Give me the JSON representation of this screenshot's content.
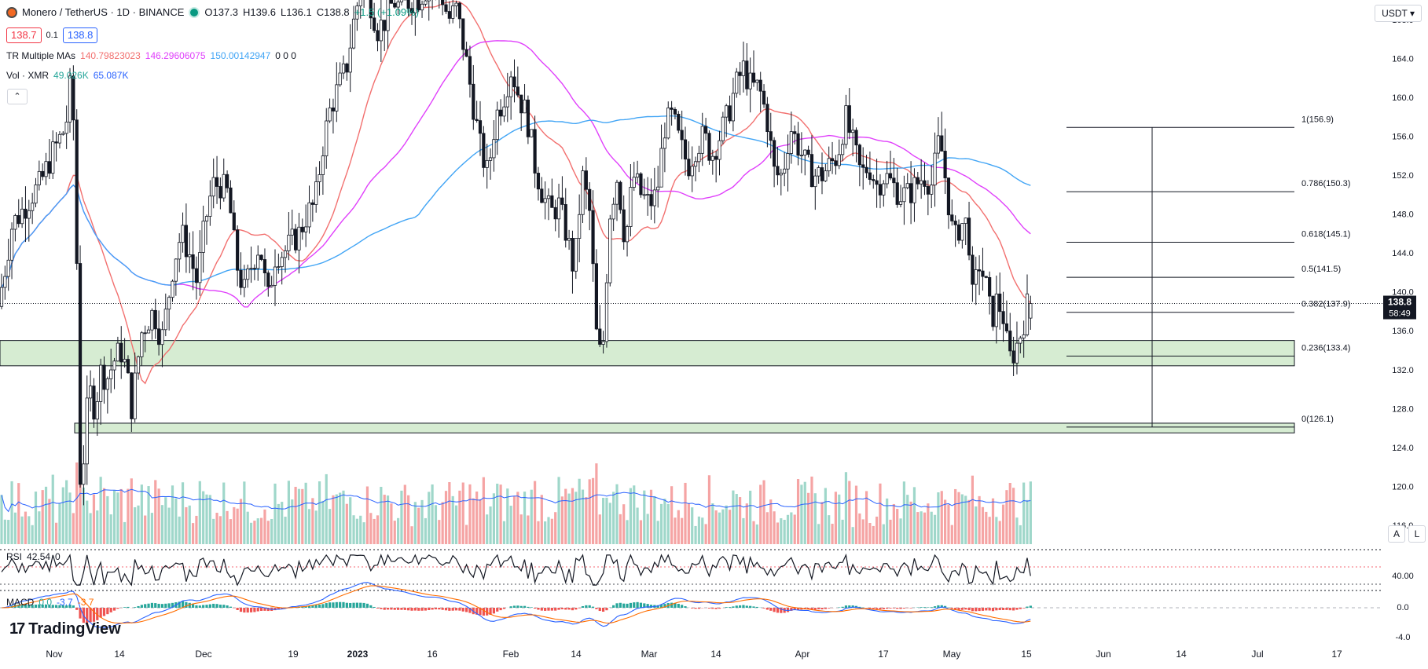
{
  "header": {
    "symbol": "Monero / TetherUS · 1D · BINANCE",
    "open": "O137.3",
    "high": "H139.6",
    "low": "L136.1",
    "close": "C138.8",
    "change": "+1.5 (+1.09%)",
    "bid": "138.7",
    "spread": "0.1",
    "ask": "138.8",
    "collapse_glyph": "⌃"
  },
  "indicators": {
    "ma_label": "TR Multiple MAs",
    "ma_values": [
      "140.79823023",
      "146.29606075",
      "150.00142947"
    ],
    "ma_zeros": "0  0  0",
    "vol_label": "Vol · XMR",
    "vol_values": [
      "49.026K",
      "65.087K"
    ],
    "rsi_label": "RSI",
    "rsi_value": "42.54",
    "rsi_extra": "0",
    "macd_label": "MACD",
    "macd_values": [
      "0.0",
      "-3.7",
      "-3.7"
    ]
  },
  "currency": "USDT",
  "scale_buttons": [
    "A",
    "L"
  ],
  "branding": "TradingView",
  "colors": {
    "up": "#26a69a",
    "down": "#ef5350",
    "ma1": "#f2706f",
    "ma2": "#e040fb",
    "ma3": "#42a5f5",
    "zone_fill": "#d6ecd2",
    "volume_ma": "#2962ff"
  },
  "chart_data": {
    "type": "candlestick",
    "price_axis": {
      "ticks": [
        "168.0",
        "164.0",
        "160.0",
        "156.0",
        "152.0",
        "148.0",
        "144.0",
        "140.0",
        "136.0",
        "132.0",
        "128.0",
        "124.0",
        "120.0",
        "116.0"
      ],
      "range": [
        113.5,
        170
      ]
    },
    "rsi_axis": {
      "ticks": [
        "40.00"
      ]
    },
    "macd_axis": {
      "ticks": [
        "0.0",
        "-4.0"
      ]
    },
    "current_price": {
      "value": "138.8",
      "countdown": "58:49"
    },
    "time_axis": [
      "Nov",
      "14",
      "Dec",
      "19",
      "2023",
      "16",
      "Feb",
      "14",
      "Mar",
      "14",
      "Apr",
      "17",
      "May",
      "15",
      "Jun",
      "14",
      "Jul",
      "17"
    ],
    "fib_levels": [
      {
        "ratio": 1,
        "price": 156.9,
        "label": "1(156.9)"
      },
      {
        "ratio": 0.786,
        "price": 150.3,
        "label": "0.786(150.3)"
      },
      {
        "ratio": 0.618,
        "price": 145.1,
        "label": "0.618(145.1)"
      },
      {
        "ratio": 0.5,
        "price": 141.5,
        "label": "0.5(141.5)"
      },
      {
        "ratio": 0.382,
        "price": 137.9,
        "label": "0.382(137.9)"
      },
      {
        "ratio": 0.236,
        "price": 133.4,
        "label": "0.236(133.4)"
      },
      {
        "ratio": 0,
        "price": 126.1,
        "label": "0(126.1)"
      }
    ],
    "support_zones": [
      [
        132.4,
        135.0
      ],
      [
        125.5,
        126.5
      ]
    ],
    "ohlc_start": {
      "open": 138.5,
      "high": 144,
      "low": 136.5,
      "close": 140.5
    },
    "ohlc_tail": [
      {
        "open": 137.3,
        "high": 139.6,
        "low": 136.1,
        "close": 138.8
      }
    ],
    "price_path_anchors": [
      [
        0,
        138.5
      ],
      [
        8,
        141
      ],
      [
        20,
        147
      ],
      [
        30,
        148
      ],
      [
        45,
        150
      ],
      [
        55,
        151
      ],
      [
        70,
        154
      ],
      [
        88,
        157
      ],
      [
        95,
        162
      ],
      [
        100,
        154
      ],
      [
        103,
        138
      ],
      [
        107,
        118
      ],
      [
        113,
        126
      ],
      [
        118,
        130
      ],
      [
        125,
        128
      ],
      [
        133,
        132
      ],
      [
        140,
        131
      ],
      [
        150,
        133
      ],
      [
        158,
        134
      ],
      [
        165,
        132
      ],
      [
        172,
        128
      ],
      [
        178,
        132
      ],
      [
        185,
        136
      ],
      [
        192,
        137
      ],
      [
        200,
        138
      ],
      [
        210,
        135
      ],
      [
        218,
        139
      ],
      [
        225,
        143
      ],
      [
        235,
        146
      ],
      [
        245,
        144
      ],
      [
        255,
        141
      ],
      [
        265,
        147
      ],
      [
        275,
        151
      ],
      [
        285,
        151
      ],
      [
        295,
        150
      ],
      [
        305,
        143
      ],
      [
        315,
        140
      ],
      [
        325,
        143
      ],
      [
        335,
        145
      ],
      [
        345,
        139
      ],
      [
        355,
        144
      ],
      [
        365,
        144
      ],
      [
        375,
        145
      ],
      [
        385,
        146
      ],
      [
        395,
        148
      ],
      [
        405,
        149
      ],
      [
        415,
        155
      ],
      [
        425,
        159
      ],
      [
        435,
        161
      ],
      [
        445,
        163
      ],
      [
        455,
        168
      ],
      [
        465,
        172
      ],
      [
        475,
        170
      ],
      [
        485,
        167
      ],
      [
        495,
        168
      ],
      [
        505,
        170
      ],
      [
        515,
        169
      ],
      [
        525,
        170
      ],
      [
        535,
        170
      ],
      [
        545,
        171
      ],
      [
        555,
        172
      ],
      [
        565,
        171
      ],
      [
        575,
        168
      ],
      [
        585,
        169
      ],
      [
        595,
        165
      ],
      [
        605,
        160
      ],
      [
        615,
        155
      ],
      [
        625,
        152
      ],
      [
        635,
        158
      ],
      [
        645,
        160
      ],
      [
        655,
        163
      ],
      [
        665,
        160
      ],
      [
        675,
        158
      ],
      [
        685,
        153
      ],
      [
        695,
        150
      ],
      [
        705,
        148
      ],
      [
        715,
        149
      ],
      [
        725,
        146
      ],
      [
        735,
        142
      ],
      [
        745,
        152
      ],
      [
        755,
        148
      ],
      [
        765,
        133
      ],
      [
        772,
        135
      ],
      [
        780,
        148
      ],
      [
        790,
        152
      ],
      [
        800,
        145
      ],
      [
        810,
        152
      ],
      [
        820,
        150
      ],
      [
        830,
        149
      ],
      [
        840,
        150
      ],
      [
        850,
        157
      ],
      [
        860,
        158
      ],
      [
        870,
        155
      ],
      [
        880,
        153
      ],
      [
        890,
        155
      ],
      [
        900,
        156
      ],
      [
        910,
        154
      ],
      [
        920,
        156
      ],
      [
        930,
        158
      ],
      [
        940,
        161
      ],
      [
        950,
        163
      ],
      [
        960,
        161
      ],
      [
        970,
        161
      ],
      [
        980,
        158
      ],
      [
        990,
        152
      ],
      [
        1000,
        152
      ],
      [
        1010,
        157
      ],
      [
        1020,
        155
      ],
      [
        1030,
        153
      ],
      [
        1040,
        152
      ],
      [
        1050,
        152
      ],
      [
        1060,
        153
      ],
      [
        1070,
        154
      ],
      [
        1080,
        158
      ],
      [
        1090,
        155
      ],
      [
        1100,
        152
      ],
      [
        1110,
        153
      ],
      [
        1120,
        151
      ],
      [
        1130,
        152
      ],
      [
        1140,
        151
      ],
      [
        1150,
        150
      ],
      [
        1160,
        150
      ],
      [
        1170,
        151
      ],
      [
        1180,
        152
      ],
      [
        1190,
        151
      ],
      [
        1200,
        156
      ],
      [
        1210,
        150
      ],
      [
        1218,
        145
      ],
      [
        1226,
        147
      ],
      [
        1236,
        147
      ],
      [
        1242,
        139
      ],
      [
        1250,
        143
      ],
      [
        1258,
        141
      ],
      [
        1266,
        137
      ],
      [
        1272,
        139
      ],
      [
        1280,
        138
      ],
      [
        1288,
        133
      ],
      [
        1296,
        134
      ],
      [
        1304,
        136
      ],
      [
        1312,
        138.8
      ]
    ],
    "volume_shape": [
      0.35,
      0.9
    ],
    "ma_lengths": [
      20,
      50,
      100
    ]
  }
}
